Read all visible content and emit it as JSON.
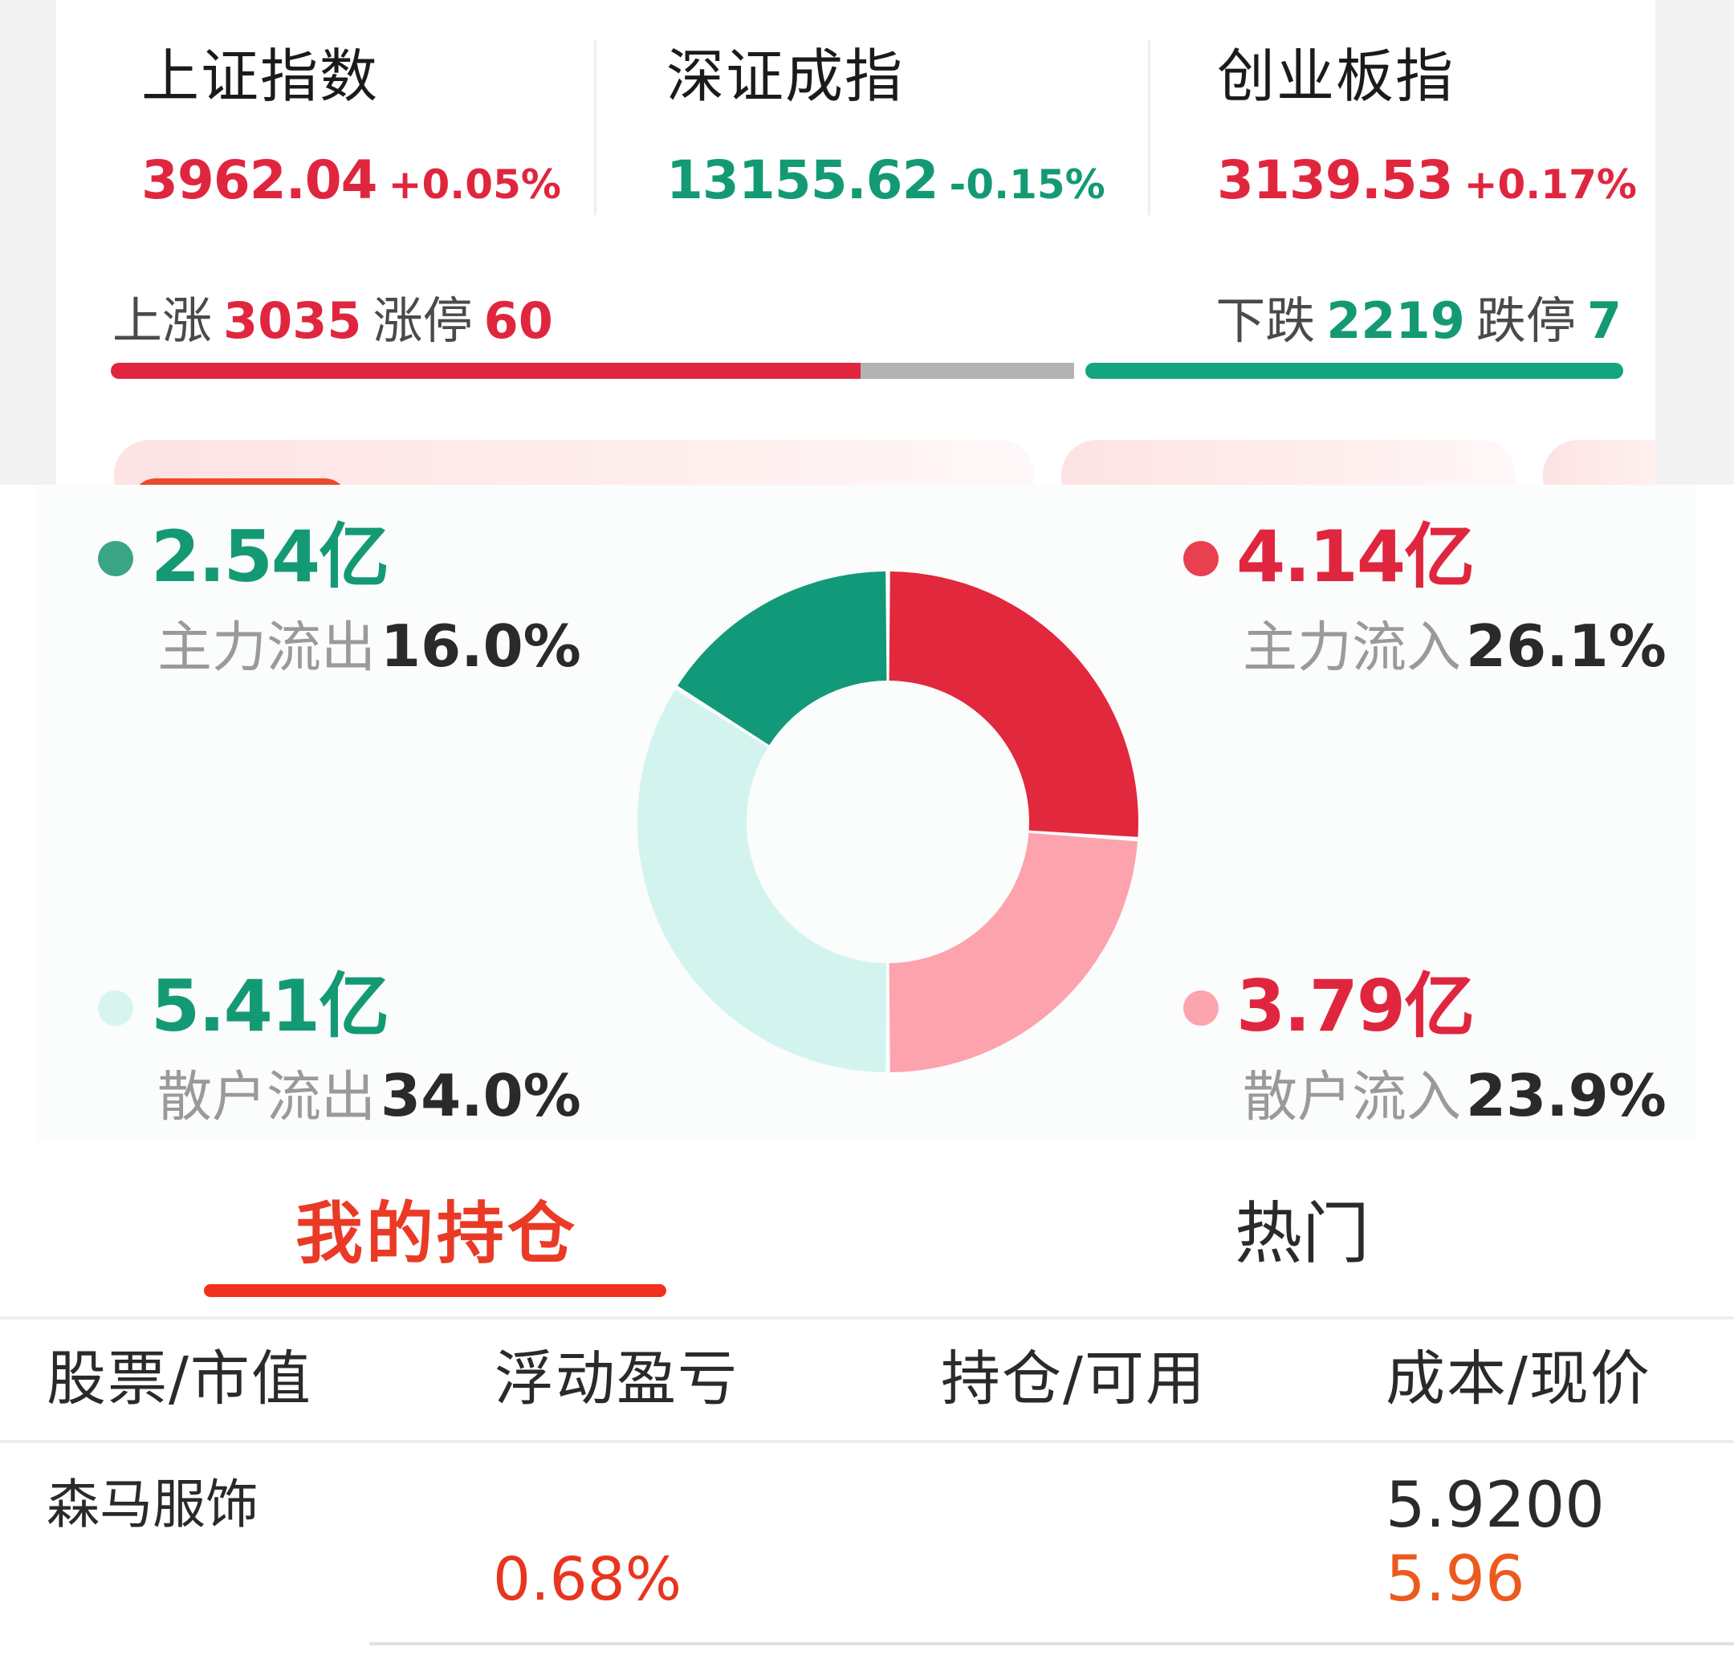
{
  "indices": [
    {
      "name": "上证指数",
      "value": "3962.04",
      "change": "+0.05%",
      "color": "#e0263e"
    },
    {
      "name": "深证成指",
      "value": "13155.62",
      "change": "-0.15%",
      "color": "#139a74"
    },
    {
      "name": "创业板指",
      "value": "3139.53",
      "change": "+0.17%",
      "color": "#e0263e"
    }
  ],
  "breadth": {
    "up_label": "上涨",
    "up_count": "3035",
    "limit_up_label": "涨停",
    "limit_up_count": "60",
    "down_label": "下跌",
    "down_count": "2219",
    "limit_down_label": "跌停",
    "limit_down_count": "7"
  },
  "fund_flow": {
    "main_out": {
      "amount": "2.54亿",
      "label": "主力流出",
      "pct": "16.0%"
    },
    "main_in": {
      "amount": "4.14亿",
      "label": "主力流入",
      "pct": "26.1%"
    },
    "retail_out": {
      "amount": "5.41亿",
      "label": "散户流出",
      "pct": "34.0%"
    },
    "retail_in": {
      "amount": "3.79亿",
      "label": "散户流入",
      "pct": "23.9%"
    },
    "colors": {
      "main_in": "#e2283d",
      "retail_in": "#fda3ad",
      "retail_out": "#d3f4ee",
      "main_out": "#12997a"
    }
  },
  "chart_data": {
    "type": "pie",
    "categories": [
      "主力流入",
      "散户流入",
      "散户流出",
      "主力流出"
    ],
    "values": [
      26.1,
      23.9,
      34.0,
      16.0
    ]
  },
  "tabs": [
    {
      "label": "我的持仓",
      "active": true
    },
    {
      "label": "热门",
      "active": false
    }
  ],
  "table": {
    "headers": [
      "股票/市值",
      "浮动盈亏",
      "持仓/可用",
      "成本/现价"
    ],
    "rows": [
      {
        "name": "森马服饰",
        "pnl_pct": "0.68%",
        "cost": "5.9200",
        "price": "5.96"
      }
    ]
  }
}
